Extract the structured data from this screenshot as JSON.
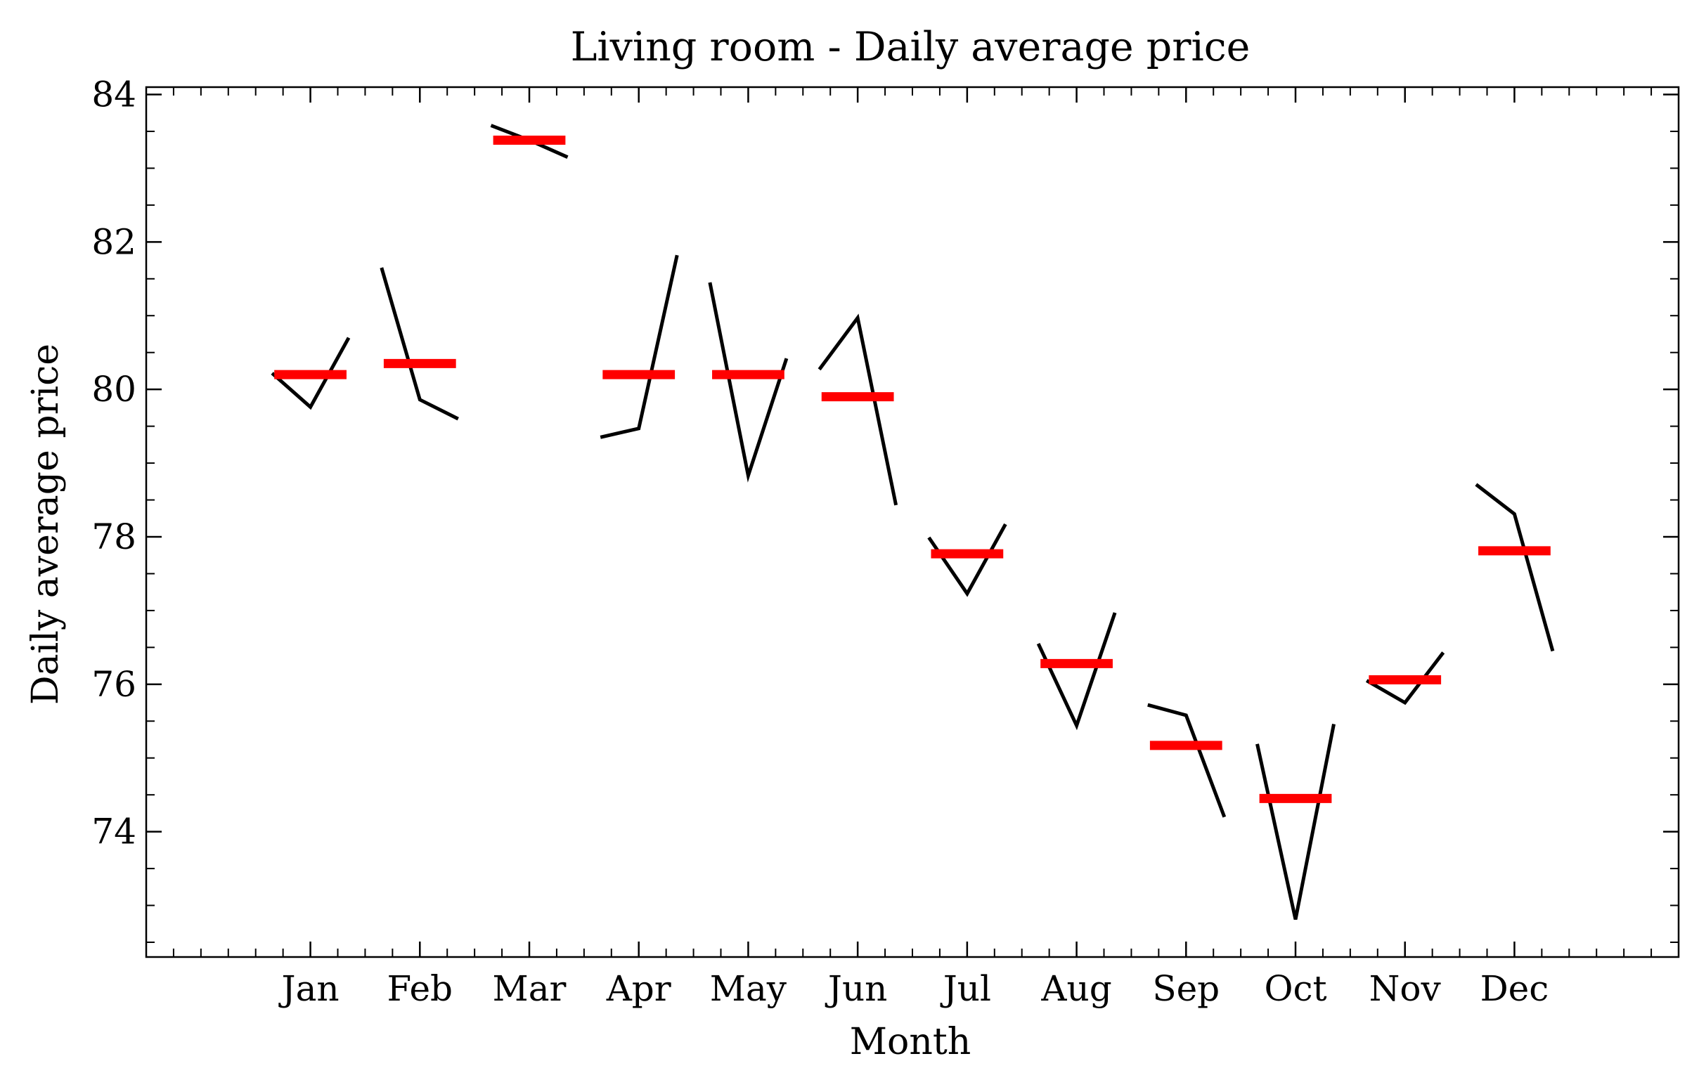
{
  "chart_data": {
    "type": "line",
    "title": "Living room - Daily average price",
    "xlabel": "Month",
    "ylabel": "Daily average price",
    "categories": [
      "Jan",
      "Feb",
      "Mar",
      "Apr",
      "May",
      "Jun",
      "Jul",
      "Aug",
      "Sep",
      "Oct",
      "Nov",
      "Dec"
    ],
    "yticks": [
      74,
      76,
      78,
      80,
      82,
      84
    ],
    "ylim": [
      72.3,
      84.1
    ],
    "xlim": [
      -1.5,
      12.5
    ],
    "grid": false,
    "legend": "none",
    "colors": {
      "line": "#000000",
      "mean": "#ff0000"
    },
    "means": [
      80.2,
      80.35,
      83.38,
      80.2,
      80.2,
      79.9,
      77.77,
      76.28,
      75.17,
      74.45,
      76.06,
      77.81
    ],
    "subseries": [
      [
        80.22,
        79.76,
        80.7
      ],
      [
        81.65,
        79.86,
        79.6
      ],
      [
        83.58,
        83.38,
        83.15
      ],
      [
        79.35,
        79.47,
        81.82
      ],
      [
        81.45,
        78.83,
        80.42
      ],
      [
        80.27,
        80.97,
        78.43
      ],
      [
        77.99,
        77.23,
        78.17
      ],
      [
        76.55,
        75.44,
        76.97
      ],
      [
        75.72,
        75.58,
        74.2
      ],
      [
        75.19,
        72.81,
        75.46
      ],
      [
        76.05,
        75.75,
        76.43
      ],
      [
        78.71,
        78.31,
        76.45
      ]
    ]
  }
}
